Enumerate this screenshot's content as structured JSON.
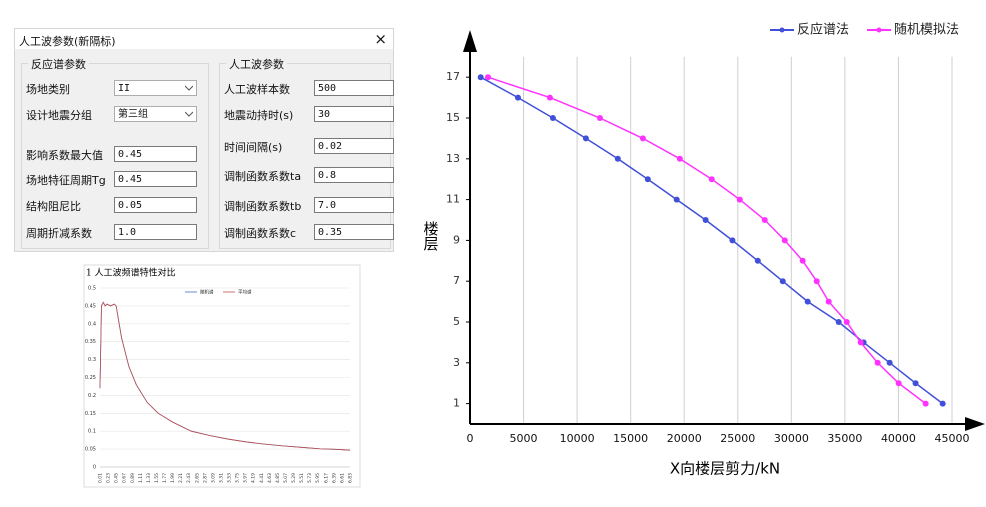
{
  "dialog": {
    "title": "人工波参数(新隔标)",
    "close": "×",
    "response_group": {
      "title": "反应谱参数",
      "fields": [
        {
          "label": "场地类别",
          "value": "II"
        },
        {
          "label": "设计地震分组",
          "value": "第三组"
        },
        {
          "label": "影响系数最大值",
          "value": "0.45"
        },
        {
          "label": "场地特征周期Tg",
          "value": "0.45"
        },
        {
          "label": "结构阻尼比",
          "value": "0.05"
        },
        {
          "label": "周期折减系数",
          "value": "1.0"
        }
      ]
    },
    "wave_group": {
      "title": "人工波参数",
      "fields": [
        {
          "label": "人工波样本数",
          "value": "500"
        },
        {
          "label": "地震动持时(s)",
          "value": "30"
        },
        {
          "label": "时间间隔(s)",
          "value": "0.02"
        },
        {
          "label": "调制函数系数ta",
          "value": "0.8"
        },
        {
          "label": "调制函数系数tb",
          "value": "7.0"
        },
        {
          "label": "调制函数系数c",
          "value": "0.35"
        }
      ]
    }
  },
  "chart_data": [
    {
      "type": "line",
      "title": "1 人工波频谱特性对比",
      "legend": "top-center",
      "grid": "y",
      "x": [
        0.01,
        0.05,
        0.1,
        0.15,
        0.2,
        0.3,
        0.4,
        0.45,
        0.6,
        0.8,
        1.0,
        1.3,
        1.6,
        2.0,
        2.5,
        3.0,
        3.5,
        4.0,
        4.5,
        5.0,
        5.5,
        6.0,
        6.5,
        6.83
      ],
      "series": [
        {
          "name": "随机谱",
          "color": "#4472c4",
          "values": [
            0.22,
            0.45,
            0.46,
            0.45,
            0.455,
            0.45,
            0.455,
            0.45,
            0.36,
            0.28,
            0.23,
            0.18,
            0.15,
            0.125,
            0.1,
            0.088,
            0.078,
            0.07,
            0.064,
            0.059,
            0.055,
            0.051,
            0.049,
            0.047
          ]
        },
        {
          "name": "平均谱",
          "color": "#c0504d",
          "values": [
            0.22,
            0.45,
            0.46,
            0.45,
            0.455,
            0.45,
            0.455,
            0.45,
            0.36,
            0.28,
            0.23,
            0.18,
            0.15,
            0.125,
            0.1,
            0.088,
            0.078,
            0.07,
            0.064,
            0.059,
            0.055,
            0.051,
            0.049,
            0.047
          ]
        }
      ],
      "xlim": [
        0.01,
        6.83
      ],
      "xticks": [
        0.01,
        0.23,
        0.45,
        0.67,
        0.89,
        1.11,
        1.33,
        1.55,
        1.77,
        1.99,
        2.21,
        2.43,
        2.65,
        2.87,
        3.09,
        3.31,
        3.53,
        3.75,
        3.97,
        4.19,
        4.41,
        4.63,
        4.85,
        5.07,
        5.29,
        5.51,
        5.73,
        5.95,
        6.17,
        6.39,
        6.61,
        6.83
      ],
      "ylim": [
        0,
        0.5
      ],
      "yticks": [
        0,
        0.05,
        0.1,
        0.15,
        0.2,
        0.25,
        0.3,
        0.35,
        0.4,
        0.45,
        0.5
      ]
    },
    {
      "type": "line",
      "x_label": "X向楼层剪力/kN",
      "y_label": "楼层",
      "legend": "top-right",
      "grid": "x",
      "markers": true,
      "series": [
        {
          "name": "反应谱法",
          "color": "#4050d8",
          "x": [
            1000,
            4480,
            7740,
            10820,
            13800,
            16600,
            19300,
            22000,
            24500,
            26870,
            29200,
            31530,
            34420,
            36750,
            39180,
            41600,
            44130
          ],
          "values": [
            17,
            16,
            15,
            14,
            13,
            12,
            11,
            10,
            9,
            8,
            7,
            6,
            5,
            4,
            3,
            2,
            1
          ]
        },
        {
          "name": "随机模拟法",
          "color": "#ff33ff",
          "x": [
            1680,
            7460,
            12130,
            16140,
            19590,
            22570,
            25190,
            27520,
            29390,
            31060,
            32370,
            33490,
            35170,
            36470,
            38060,
            40020,
            42540
          ],
          "values": [
            17,
            16,
            15,
            14,
            13,
            12,
            11,
            10,
            9,
            8,
            7,
            6,
            5,
            4,
            3,
            2,
            1
          ]
        }
      ],
      "xlim": [
        0,
        45000
      ],
      "xticks": [
        0,
        5000,
        10000,
        15000,
        20000,
        25000,
        30000,
        35000,
        40000,
        45000
      ],
      "ylim": [
        0,
        18
      ],
      "yticks": [
        1,
        3,
        5,
        7,
        9,
        11,
        13,
        15,
        17
      ]
    }
  ]
}
